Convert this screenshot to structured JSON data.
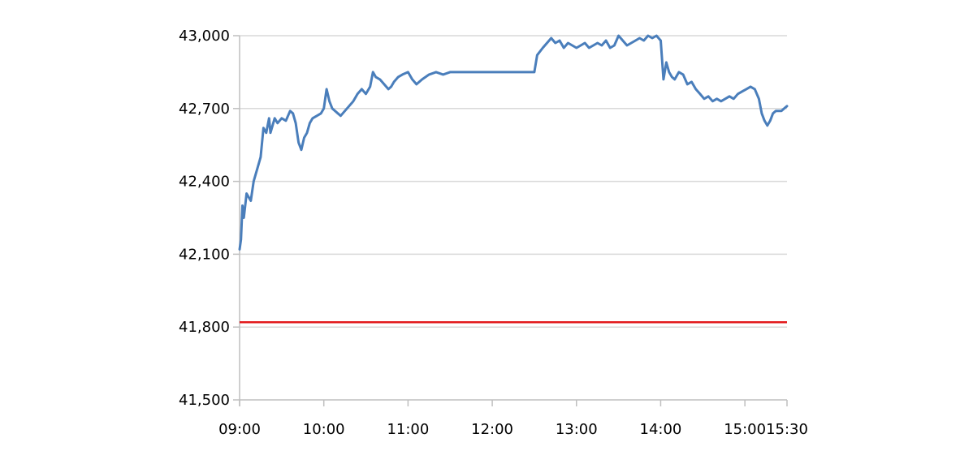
{
  "chart_data": {
    "type": "line",
    "title": "",
    "xlabel": "",
    "ylabel": "",
    "x_tick_labels": [
      "09:00",
      "10:00",
      "11:00",
      "12:00",
      "13:00",
      "14:00",
      "15:00",
      "15:30"
    ],
    "x_tick_minutes": [
      540,
      600,
      660,
      720,
      780,
      840,
      900,
      930
    ],
    "y_tick_labels": [
      "41,500",
      "41,800",
      "42,100",
      "42,400",
      "42,700",
      "43,000"
    ],
    "y_tick_values": [
      41500,
      41800,
      42100,
      42400,
      42700,
      43000
    ],
    "xlim": [
      "09:00",
      "15:30"
    ],
    "ylim": [
      41500,
      43000
    ],
    "grid": {
      "horizontal": true,
      "vertical": false
    },
    "legend": "none",
    "reference_line": {
      "value": 41820,
      "color": "#e31a1c"
    },
    "series": [
      {
        "color": "#4a7ebb",
        "points": [
          [
            "09:00",
            42120
          ],
          [
            "09:01",
            42160
          ],
          [
            "09:02",
            42300
          ],
          [
            "09:03",
            42250
          ],
          [
            "09:05",
            42350
          ],
          [
            "09:07",
            42330
          ],
          [
            "09:08",
            42320
          ],
          [
            "09:10",
            42400
          ],
          [
            "09:13",
            42460
          ],
          [
            "09:15",
            42500
          ],
          [
            "09:17",
            42620
          ],
          [
            "09:19",
            42600
          ],
          [
            "09:21",
            42660
          ],
          [
            "09:22",
            42600
          ],
          [
            "09:25",
            42660
          ],
          [
            "09:27",
            42640
          ],
          [
            "09:30",
            42660
          ],
          [
            "09:33",
            42650
          ],
          [
            "09:36",
            42690
          ],
          [
            "09:38",
            42680
          ],
          [
            "09:40",
            42640
          ],
          [
            "09:42",
            42560
          ],
          [
            "09:44",
            42530
          ],
          [
            "09:46",
            42580
          ],
          [
            "09:48",
            42600
          ],
          [
            "09:50",
            42640
          ],
          [
            "09:52",
            42660
          ],
          [
            "09:55",
            42670
          ],
          [
            "09:58",
            42680
          ],
          [
            "10:00",
            42700
          ],
          [
            "10:02",
            42780
          ],
          [
            "10:04",
            42730
          ],
          [
            "10:06",
            42700
          ],
          [
            "10:08",
            42690
          ],
          [
            "10:10",
            42680
          ],
          [
            "10:12",
            42670
          ],
          [
            "10:15",
            42690
          ],
          [
            "10:18",
            42710
          ],
          [
            "10:21",
            42730
          ],
          [
            "10:24",
            42760
          ],
          [
            "10:27",
            42780
          ],
          [
            "10:30",
            42760
          ],
          [
            "10:33",
            42790
          ],
          [
            "10:35",
            42850
          ],
          [
            "10:37",
            42830
          ],
          [
            "10:40",
            42820
          ],
          [
            "10:43",
            42800
          ],
          [
            "10:46",
            42780
          ],
          [
            "10:48",
            42790
          ],
          [
            "10:50",
            42810
          ],
          [
            "10:53",
            42830
          ],
          [
            "10:56",
            42840
          ],
          [
            "11:00",
            42850
          ],
          [
            "11:03",
            42820
          ],
          [
            "11:06",
            42800
          ],
          [
            "11:10",
            42820
          ],
          [
            "11:15",
            42840
          ],
          [
            "11:20",
            42850
          ],
          [
            "11:25",
            42840
          ],
          [
            "11:30",
            42850
          ],
          [
            "11:40",
            42850
          ],
          [
            "11:50",
            42850
          ],
          [
            "12:00",
            42850
          ],
          [
            "12:15",
            42850
          ],
          [
            "12:30",
            42850
          ],
          [
            "12:32",
            42920
          ],
          [
            "12:36",
            42950
          ],
          [
            "12:39",
            42970
          ],
          [
            "12:42",
            42990
          ],
          [
            "12:45",
            42970
          ],
          [
            "12:48",
            42980
          ],
          [
            "12:51",
            42950
          ],
          [
            "12:54",
            42970
          ],
          [
            "12:57",
            42960
          ],
          [
            "13:00",
            42950
          ],
          [
            "13:03",
            42960
          ],
          [
            "13:06",
            42970
          ],
          [
            "13:09",
            42950
          ],
          [
            "13:12",
            42960
          ],
          [
            "13:15",
            42970
          ],
          [
            "13:18",
            42960
          ],
          [
            "13:21",
            42980
          ],
          [
            "13:24",
            42950
          ],
          [
            "13:27",
            42960
          ],
          [
            "13:30",
            43000
          ],
          [
            "13:33",
            42980
          ],
          [
            "13:36",
            42960
          ],
          [
            "13:39",
            42970
          ],
          [
            "13:42",
            42980
          ],
          [
            "13:45",
            42990
          ],
          [
            "13:48",
            42980
          ],
          [
            "13:51",
            43000
          ],
          [
            "13:54",
            42990
          ],
          [
            "13:57",
            43000
          ],
          [
            "14:00",
            42980
          ],
          [
            "14:02",
            42820
          ],
          [
            "14:04",
            42890
          ],
          [
            "14:06",
            42850
          ],
          [
            "14:08",
            42830
          ],
          [
            "14:10",
            42820
          ],
          [
            "14:13",
            42850
          ],
          [
            "14:16",
            42840
          ],
          [
            "14:19",
            42800
          ],
          [
            "14:22",
            42810
          ],
          [
            "14:25",
            42780
          ],
          [
            "14:28",
            42760
          ],
          [
            "14:31",
            42740
          ],
          [
            "14:34",
            42750
          ],
          [
            "14:37",
            42730
          ],
          [
            "14:40",
            42740
          ],
          [
            "14:43",
            42730
          ],
          [
            "14:46",
            42740
          ],
          [
            "14:49",
            42750
          ],
          [
            "14:52",
            42740
          ],
          [
            "14:55",
            42760
          ],
          [
            "14:58",
            42770
          ],
          [
            "15:01",
            42780
          ],
          [
            "15:04",
            42790
          ],
          [
            "15:07",
            42780
          ],
          [
            "15:10",
            42740
          ],
          [
            "15:12",
            42680
          ],
          [
            "15:14",
            42650
          ],
          [
            "15:16",
            42630
          ],
          [
            "15:18",
            42650
          ],
          [
            "15:20",
            42680
          ],
          [
            "15:22",
            42690
          ],
          [
            "15:24",
            42690
          ],
          [
            "15:26",
            42690
          ],
          [
            "15:28",
            42700
          ],
          [
            "15:30",
            42710
          ]
        ]
      }
    ]
  }
}
